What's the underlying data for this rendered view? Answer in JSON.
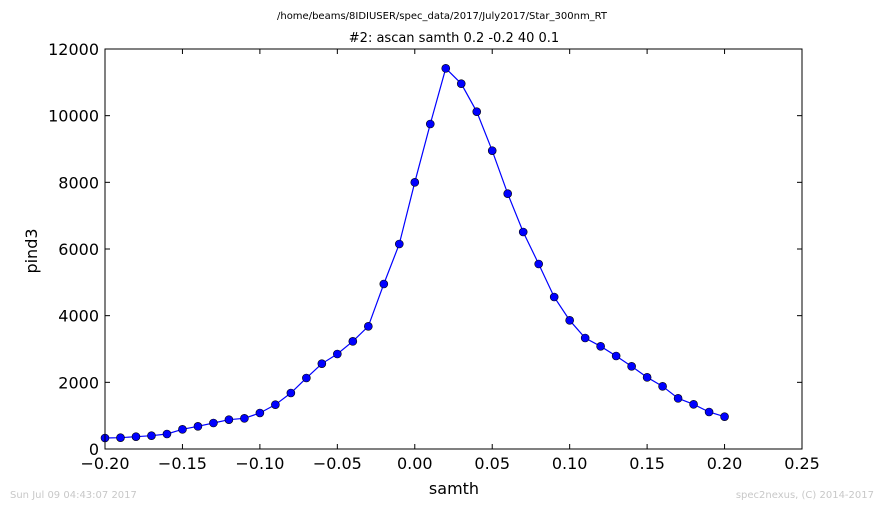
{
  "figure": {
    "suptitle": "/home/beams/8IDIUSER/spec_data/2017/July2017/Star_300nm_RT",
    "footer_left": "Sun Jul 09 04:43:07 2017",
    "footer_right": "spec2nexus, (C) 2014-2017"
  },
  "chart_data": {
    "type": "line",
    "title": "#2: ascan  samth 0.2 -0.2  40 0.1",
    "xlabel": "samth",
    "ylabel": "pind3",
    "xlim": [
      -0.2,
      0.25
    ],
    "ylim": [
      0,
      12000
    ],
    "x_ticks": [
      -0.2,
      -0.15,
      -0.1,
      -0.05,
      0.0,
      0.05,
      0.1,
      0.15,
      0.2,
      0.25
    ],
    "x_tick_labels": [
      "−0.20",
      "−0.15",
      "−0.10",
      "−0.05",
      "0.00",
      "0.05",
      "0.10",
      "0.15",
      "0.20",
      "0.25"
    ],
    "y_ticks": [
      0,
      2000,
      4000,
      6000,
      8000,
      10000,
      12000
    ],
    "y_tick_labels": [
      "0",
      "2000",
      "4000",
      "6000",
      "8000",
      "10000",
      "12000"
    ],
    "grid": false,
    "legend": "none",
    "series": [
      {
        "color": "#0000ff",
        "marker": "circle",
        "x": [
          -0.2,
          -0.19,
          -0.18,
          -0.17,
          -0.16,
          -0.15,
          -0.14,
          -0.13,
          -0.12,
          -0.11,
          -0.1,
          -0.09,
          -0.08,
          -0.07,
          -0.06,
          -0.05,
          -0.04,
          -0.03,
          -0.02,
          -0.01,
          0.0,
          0.01,
          0.02,
          0.03,
          0.04,
          0.05,
          0.06,
          0.07,
          0.08,
          0.09,
          0.1,
          0.11,
          0.12,
          0.13,
          0.14,
          0.15,
          0.16,
          0.17,
          0.18,
          0.19,
          0.2
        ],
        "y": [
          330,
          340,
          370,
          400,
          450,
          590,
          680,
          780,
          880,
          920,
          1080,
          1330,
          1680,
          2130,
          2560,
          2850,
          3230,
          3680,
          4950,
          6150,
          8000,
          9750,
          11420,
          10960,
          10120,
          8950,
          7660,
          6510,
          5550,
          4560,
          3860,
          3330,
          3080,
          2790,
          2480,
          2150,
          1880,
          1520,
          1340,
          1110,
          970
        ]
      }
    ]
  }
}
